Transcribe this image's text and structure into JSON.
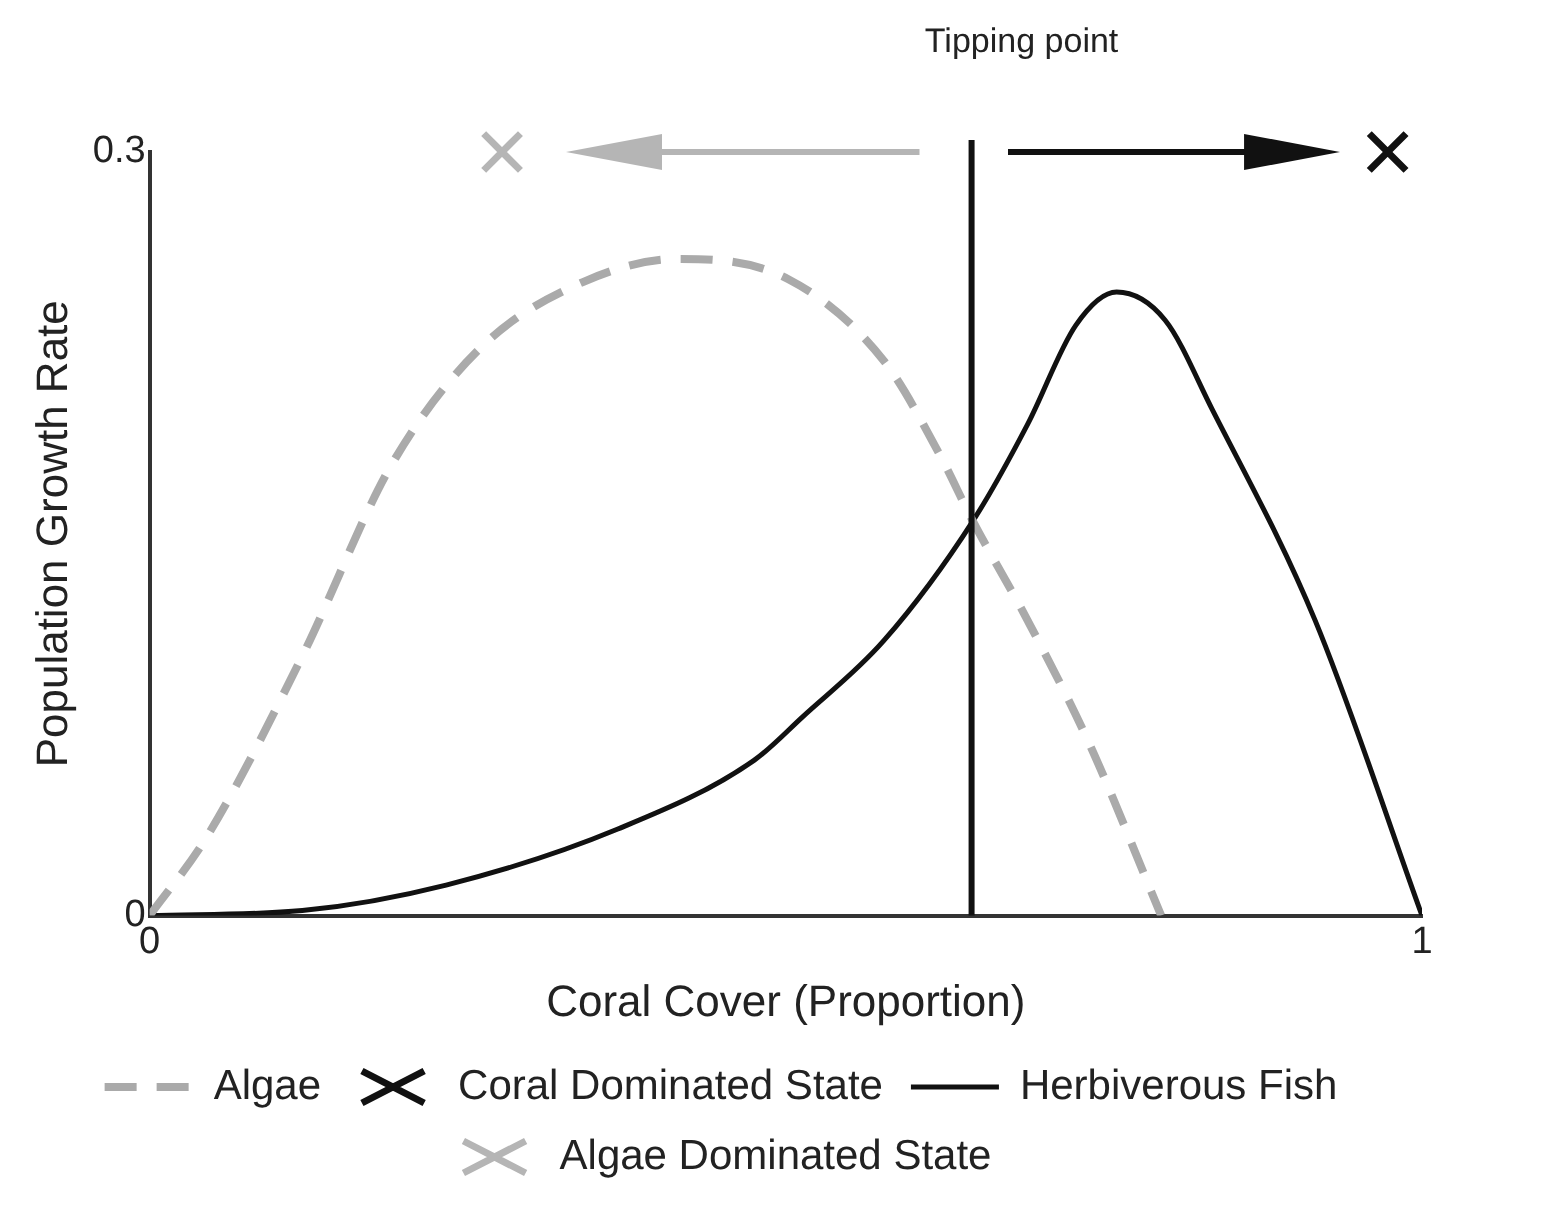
{
  "chart_data": {
    "type": "line",
    "xlabel": "Coral Cover (Proportion)",
    "ylabel": "Population Growth Rate",
    "xlim": [
      0,
      1
    ],
    "ylim": [
      0,
      0.3
    ],
    "xticks": [
      0,
      1
    ],
    "yticks": [
      0,
      0.3
    ],
    "legend": "bottom",
    "ref_lines": [
      {
        "axis": "x",
        "value": 0.646,
        "label": "Tipping point",
        "color": "#111111"
      }
    ],
    "series": [
      {
        "name": "Algae",
        "color": "#aaaaaa",
        "line_style": "dashed",
        "marker": "none",
        "x": [
          0,
          0.045,
          0.12,
          0.19,
          0.26,
          0.341,
          0.416,
          0.502,
          0.577,
          0.62,
          0.647,
          0.69,
          0.739,
          0.795
        ],
        "values": [
          0,
          0.031,
          0.102,
          0.177,
          0.223,
          0.249,
          0.258,
          0.25,
          0.218,
          0.182,
          0.155,
          0.116,
          0.067,
          0
        ]
      },
      {
        "name": "Herbiverous Fish",
        "color": "#111111",
        "line_style": "solid",
        "marker": "none",
        "x": [
          0,
          0.12,
          0.233,
          0.368,
          0.475,
          0.513,
          0.577,
          0.647,
          0.69,
          0.728,
          0.76,
          0.798,
          0.835,
          0.916,
          1
        ],
        "values": [
          0,
          0.002,
          0.012,
          0.034,
          0.061,
          0.078,
          0.108,
          0.155,
          0.193,
          0.232,
          0.245,
          0.234,
          0.199,
          0.116,
          0
        ]
      },
      {
        "name": "Coral Dominated State",
        "type": "scatter",
        "color": "#111111",
        "marker": "cross",
        "x": [
          0.973
        ],
        "values": [
          0.3
        ]
      },
      {
        "name": "Algae Dominated State",
        "type": "scatter",
        "color": "#b5b5b5",
        "marker": "cross",
        "x": [
          0.277
        ],
        "values": [
          0.3
        ]
      }
    ]
  }
}
